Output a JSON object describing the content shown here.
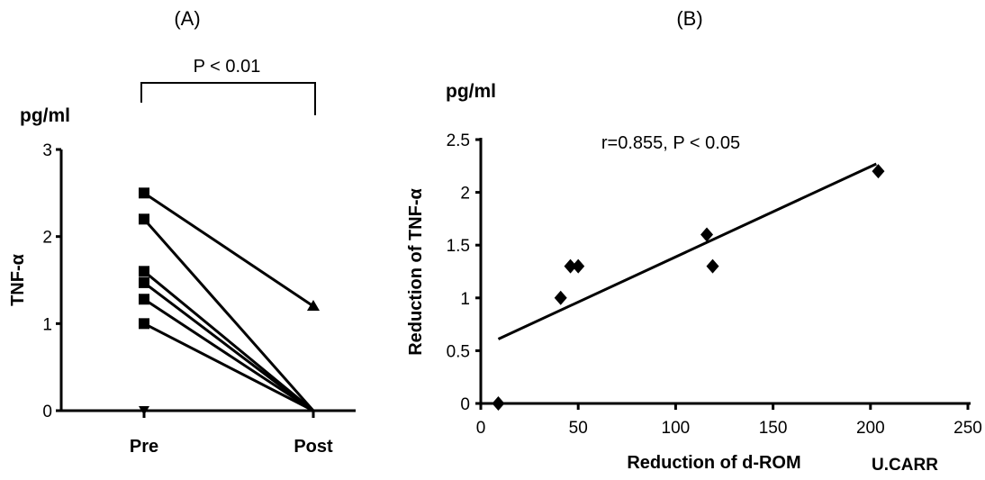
{
  "chart_data": [
    {
      "type": "line",
      "panel_label": "(A)",
      "unit_label": "pg/ml",
      "ylabel": "TNF-α",
      "categories": [
        "Pre",
        "Post"
      ],
      "ylim": [
        0,
        3
      ],
      "yticks": [
        "0",
        "1",
        "2",
        "3"
      ],
      "significance": "P < 0.01",
      "series": [
        {
          "values": [
            2.5,
            1.2
          ]
        },
        {
          "values": [
            2.2,
            0
          ]
        },
        {
          "values": [
            1.6,
            0
          ]
        },
        {
          "values": [
            1.47,
            0
          ]
        },
        {
          "values": [
            1.28,
            0
          ]
        },
        {
          "values": [
            1.0,
            0
          ]
        },
        {
          "values": [
            0,
            0
          ]
        }
      ],
      "grid": false
    },
    {
      "type": "scatter",
      "panel_label": "(B)",
      "unit_label": "pg/ml",
      "ylabel": "Reduction of TNF-α",
      "xlabel": "Reduction of d-ROM",
      "xunit": "U.CARR",
      "annotation": "r=0.855, P < 0.05",
      "xlim": [
        0,
        250
      ],
      "ylim": [
        0,
        2.5
      ],
      "xticks": [
        "0",
        "50",
        "100",
        "150",
        "200",
        "250"
      ],
      "yticks": [
        "0",
        "0.5",
        "1",
        "1.5",
        "2",
        "2.5"
      ],
      "points": [
        [
          9,
          0
        ],
        [
          41,
          1.0
        ],
        [
          46,
          1.3
        ],
        [
          50,
          1.3
        ],
        [
          116,
          1.6
        ],
        [
          119,
          1.3
        ],
        [
          204,
          2.2
        ]
      ],
      "trendline": [
        [
          9,
          0.61
        ],
        [
          203,
          2.27
        ]
      ],
      "grid": false
    }
  ]
}
